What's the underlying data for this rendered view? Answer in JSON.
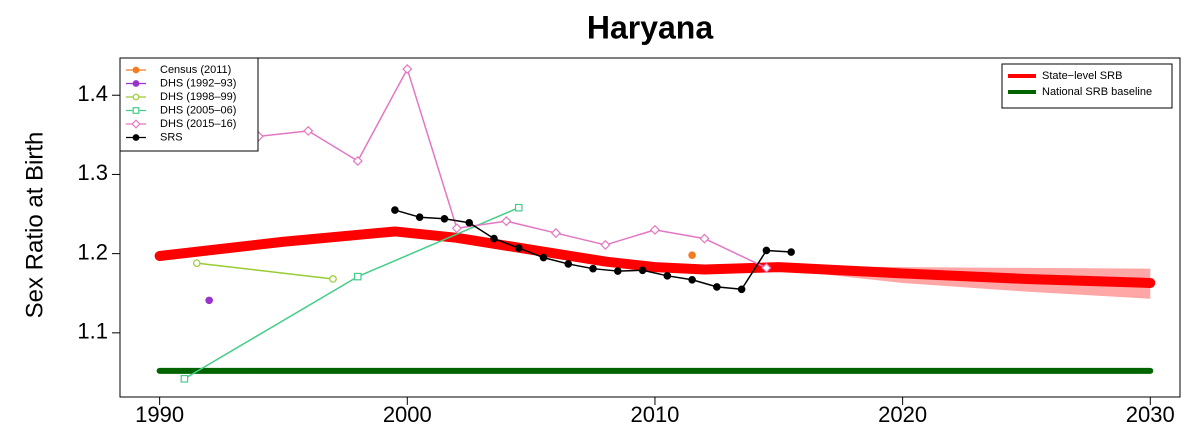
{
  "chart_data": {
    "type": "line",
    "title": "Haryana",
    "y_label": "Sex Ratio at Birth",
    "xlim": [
      1988.4,
      2031.2
    ],
    "ylim": [
      1.019,
      1.447
    ],
    "xticks": [
      1990,
      2000,
      2010,
      2020,
      2030
    ],
    "yticks": [
      1.1,
      1.2,
      1.3,
      1.4
    ],
    "legend": "top-left",
    "lines_legend": "top-right",
    "series": [
      {
        "name": "Census (2011)",
        "color": "#f47c20",
        "marker": "circle",
        "x": [
          2011.5
        ],
        "values": [
          1.198
        ]
      },
      {
        "name": "DHS (1992–93)",
        "color": "#9933cc",
        "marker": "circle",
        "x": [
          1992
        ],
        "values": [
          1.141
        ]
      },
      {
        "name": "DHS (1998–99)",
        "color": "#99cc33",
        "marker": "open-circle",
        "x": [
          1991.5,
          1997
        ],
        "values": [
          1.188,
          1.168
        ]
      },
      {
        "name": "DHS (2005–06)",
        "color": "#44cc88",
        "marker": "open-square",
        "x": [
          1991,
          1998,
          2004.5
        ],
        "values": [
          1.042,
          1.171,
          1.258
        ]
      },
      {
        "name": "DHS (2015–16)",
        "color": "#e377c2",
        "marker": "open-diamond",
        "x": [
          1992,
          1994,
          1996,
          1998,
          2000,
          2002,
          2004,
          2006,
          2008,
          2010,
          2012,
          2014.5
        ],
        "values": [
          1.425,
          1.348,
          1.355,
          1.317,
          1.433,
          1.232,
          1.241,
          1.226,
          1.211,
          1.23,
          1.219,
          1.182
        ]
      },
      {
        "name": "SRS",
        "color": "#000000",
        "marker": "circle",
        "x": [
          1999.5,
          2000.5,
          2001.5,
          2002.5,
          2003.5,
          2004.5,
          2005.5,
          2006.5,
          2007.5,
          2008.5,
          2009.5,
          2010.5,
          2011.5,
          2012.5,
          2013.5,
          2014.5,
          2015.5
        ],
        "values": [
          1.255,
          1.246,
          1.244,
          1.239,
          1.219,
          1.207,
          1.195,
          1.187,
          1.181,
          1.178,
          1.179,
          1.172,
          1.167,
          1.158,
          1.155,
          1.204,
          1.202
        ]
      }
    ],
    "lines": [
      {
        "name": "State−level SRB",
        "color": "#ff0000",
        "width": 10,
        "x": [
          1990,
          1995,
          1999.5,
          2002,
          2005,
          2008,
          2010,
          2012,
          2015,
          2020,
          2025,
          2030
        ],
        "values": [
          1.197,
          1.215,
          1.228,
          1.22,
          1.205,
          1.19,
          1.183,
          1.18,
          1.183,
          1.175,
          1.168,
          1.163
        ]
      },
      {
        "name": "National SRB baseline",
        "color": "#006400",
        "width": 6,
        "x": [
          1990,
          2030
        ],
        "values": [
          1.052,
          1.052
        ]
      }
    ],
    "band": {
      "color": "#ff8080",
      "x": [
        2015,
        2020,
        2025,
        2030
      ],
      "upper": [
        1.185,
        1.183,
        1.182,
        1.181
      ],
      "lower": [
        1.18,
        1.163,
        1.152,
        1.143
      ]
    }
  }
}
